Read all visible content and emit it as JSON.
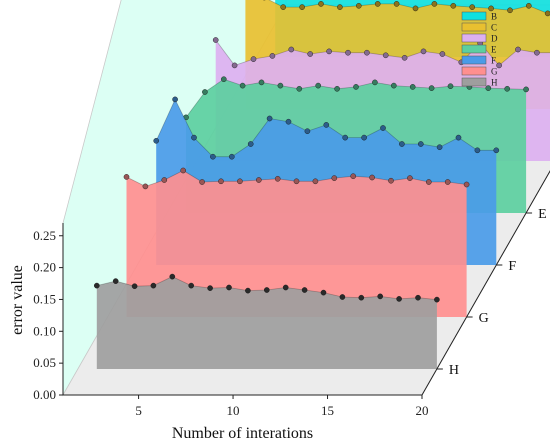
{
  "chart_data": {
    "type": "area",
    "view": "3d-waterfall",
    "xlabel": "Number of interations",
    "ylabel": "error value",
    "x_ticks": [
      5,
      10,
      15,
      20
    ],
    "y_ticks": [
      "0.00",
      "0.05",
      "0.10",
      "0.15",
      "0.20",
      "0.25"
    ],
    "xlim": [
      1,
      20
    ],
    "ylim": [
      0,
      0.27
    ],
    "legend_position": "top-right",
    "x": [
      2,
      3,
      4,
      5,
      6,
      7,
      8,
      9,
      10,
      11,
      12,
      13,
      14,
      15,
      16,
      17,
      18,
      19,
      20
    ],
    "series": [
      {
        "name": "H",
        "color": "#9e9e9e",
        "values": [
          0.131,
          0.138,
          0.13,
          0.131,
          0.145,
          0.131,
          0.127,
          0.128,
          0.123,
          0.124,
          0.128,
          0.124,
          0.12,
          0.113,
          0.112,
          0.114,
          0.11,
          0.112,
          0.109
        ]
      },
      {
        "name": "G",
        "color": "#ff8f8f",
        "values": [
          0.22,
          0.205,
          0.215,
          0.23,
          0.212,
          0.213,
          0.213,
          0.215,
          0.217,
          0.213,
          0.213,
          0.218,
          0.221,
          0.219,
          0.214,
          0.218,
          0.212,
          0.212,
          0.208
        ]
      },
      {
        "name": "F",
        "color": "#4a9be8",
        "values": [
          0.195,
          0.26,
          0.2,
          0.17,
          0.17,
          0.19,
          0.23,
          0.225,
          0.21,
          0.22,
          0.2,
          0.2,
          0.215,
          0.19,
          0.19,
          0.185,
          0.2,
          0.18,
          0.18
        ]
      },
      {
        "name": "E",
        "color": "#5ccfa0",
        "values": [
          0.15,
          0.19,
          0.21,
          0.2,
          0.205,
          0.2,
          0.195,
          0.2,
          0.195,
          0.198,
          0.205,
          0.2,
          0.198,
          0.196,
          0.199,
          0.198,
          0.196,
          0.195,
          0.194
        ]
      },
      {
        "name": "D",
        "color": "#dcb0f0",
        "values": [
          0.19,
          0.15,
          0.16,
          0.165,
          0.175,
          0.168,
          0.172,
          0.17,
          0.17,
          0.166,
          0.162,
          0.172,
          0.168,
          0.155,
          0.185,
          0.15,
          0.175,
          0.17,
          0.17
        ]
      },
      {
        "name": "C",
        "color": "#e8c030",
        "values": [
          0.29,
          0.175,
          0.16,
          0.16,
          0.165,
          0.16,
          0.162,
          0.165,
          0.165,
          0.158,
          0.165,
          0.162,
          0.16,
          0.158,
          0.155,
          0.162,
          0.15,
          0.158,
          0.165
        ]
      },
      {
        "name": "B",
        "color": "#10e0e0",
        "values": [
          0.33,
          0.21,
          0.2,
          0.205,
          0.21,
          0.2,
          0.2,
          0.21,
          0.225,
          0.2,
          0.245,
          0.2,
          0.2,
          0.182,
          0.194,
          0.198,
          0.2,
          0.165,
          0.2
        ]
      }
    ]
  }
}
